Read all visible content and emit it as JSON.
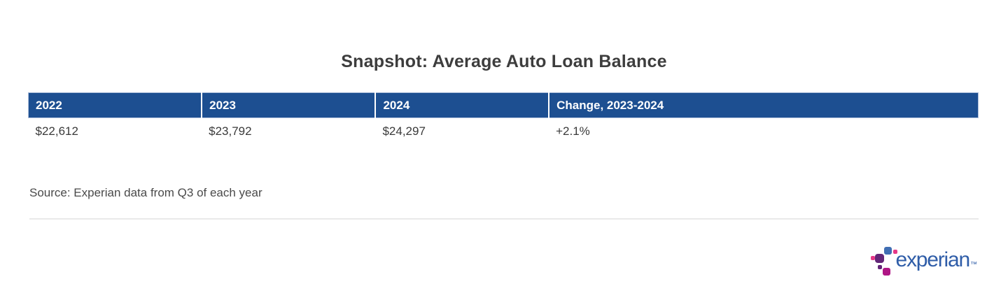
{
  "page": {
    "title": "Snapshot: Average Auto Loan Balance",
    "source_note": "Source: Experian data from Q3 of each year"
  },
  "table": {
    "headers": [
      "2022",
      "2023",
      "2024",
      "Change, 2023-2024"
    ],
    "row": [
      "$22,612",
      "$23,792",
      "$24,297",
      "+2.1%"
    ]
  },
  "logo": {
    "brand": "experian",
    "trademark": "™"
  },
  "colors": {
    "header_bg": "#1d4f91",
    "header_text": "#ffffff",
    "title_text": "#3d3d3d",
    "body_text": "#3a3a3a",
    "source_text": "#4a4a4a",
    "divider": "#e9e9e9",
    "logo_blue": "#406eb3",
    "logo_purple": "#632678",
    "logo_magenta": "#af1685",
    "logo_pink": "#e63888",
    "logo_wordmark": "#2f5da8"
  },
  "chart_data": {
    "type": "table",
    "title": "Snapshot: Average Auto Loan Balance",
    "columns": [
      "2022",
      "2023",
      "2024",
      "Change, 2023-2024"
    ],
    "rows": [
      [
        "$22,612",
        "$23,792",
        "$24,297",
        "+2.1%"
      ]
    ],
    "numeric": {
      "2022": 22612,
      "2023": 23792,
      "2024": 24297,
      "change_2023_2024_percent": 2.1
    },
    "source": "Source: Experian data from Q3 of each year",
    "layout": {
      "header_style": "dark-blue-bar-white-text",
      "grid": "off",
      "title_position": "top-center"
    }
  }
}
